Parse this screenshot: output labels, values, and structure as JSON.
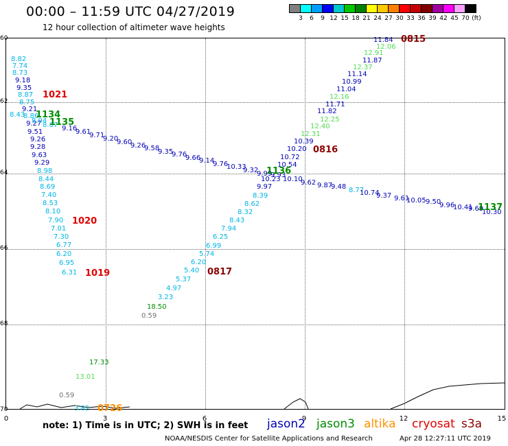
{
  "header": {
    "title": "00:00 – 11:59 UTC 04/27/2019",
    "subtitle": "12 hour collection of altimeter wave heights"
  },
  "colorbar": {
    "colors": [
      "#808080",
      "#00ffff",
      "#00a0ff",
      "#0000ff",
      "#00c8c8",
      "#00c800",
      "#008000",
      "#ffff00",
      "#ffc800",
      "#ff8000",
      "#ff0000",
      "#c80000",
      "#800000",
      "#a000a0",
      "#ff00ff",
      "#ffa0ff",
      "#000000"
    ],
    "labels": [
      "3",
      "6",
      "9",
      "12",
      "15",
      "18",
      "21",
      "24",
      "27",
      "30",
      "33",
      "36",
      "39",
      "42",
      "45",
      "70",
      "(ft)"
    ]
  },
  "axes": {
    "y_labels": [
      "60",
      "62",
      "64",
      "66",
      "68",
      "70"
    ],
    "x_labels": [
      "0",
      "3",
      "6",
      "9",
      "12",
      "15"
    ]
  },
  "series_colors": {
    "jason2": "#0000b4",
    "jason3": "#008c00",
    "altika": "#ff9000",
    "cryosat": "#e00000",
    "s3a": "#8b0000",
    "cyan": "#00b4e6",
    "lightgreen": "#50dc50",
    "gray": "#707070"
  },
  "points": [
    {
      "v": "8.82",
      "c": "cyan"
    },
    {
      "v": "7.74",
      "c": "cyan"
    },
    {
      "v": "8.73",
      "c": "cyan"
    },
    {
      "v": "9.18",
      "c": "jason2"
    },
    {
      "v": "9.35",
      "c": "jason2"
    },
    {
      "v": "8.87",
      "c": "cyan"
    },
    {
      "v": "8.75",
      "c": "cyan"
    },
    {
      "v": "9.21",
      "c": "jason2"
    },
    {
      "v": "8.43",
      "c": "cyan"
    },
    {
      "v": "8.86",
      "c": "cyan"
    },
    {
      "v": "9.27",
      "c": "jason2"
    },
    {
      "v": "8.94",
      "c": "cyan"
    },
    {
      "v": "8.67",
      "c": "cyan"
    },
    {
      "v": "9.16",
      "c": "jason2"
    },
    {
      "v": "9.51",
      "c": "jason2"
    },
    {
      "v": "9.26",
      "c": "jason2"
    },
    {
      "v": "9.28",
      "c": "jason2"
    },
    {
      "v": "9.63",
      "c": "jason2"
    },
    {
      "v": "9.29",
      "c": "jason2"
    },
    {
      "v": "8.98",
      "c": "cyan"
    },
    {
      "v": "8.44",
      "c": "cyan"
    },
    {
      "v": "8.69",
      "c": "cyan"
    },
    {
      "v": "7.40",
      "c": "cyan"
    },
    {
      "v": "8.53",
      "c": "cyan"
    },
    {
      "v": "8.10",
      "c": "cyan"
    },
    {
      "v": "7.90",
      "c": "cyan"
    },
    {
      "v": "7.01",
      "c": "cyan"
    },
    {
      "v": "7.30",
      "c": "cyan"
    },
    {
      "v": "6.77",
      "c": "cyan"
    },
    {
      "v": "6.20",
      "c": "cyan"
    },
    {
      "v": "6.95",
      "c": "cyan"
    },
    {
      "v": "6.31",
      "c": "cyan"
    },
    {
      "v": "9.61",
      "c": "jason2"
    },
    {
      "v": "9.71",
      "c": "jason2"
    },
    {
      "v": "9.20",
      "c": "jason2"
    },
    {
      "v": "9.60",
      "c": "jason2"
    },
    {
      "v": "9.26",
      "c": "jason2"
    },
    {
      "v": "9.58",
      "c": "jason2"
    },
    {
      "v": "9.35",
      "c": "jason2"
    },
    {
      "v": "9.76",
      "c": "jason2"
    },
    {
      "v": "9.66",
      "c": "jason2"
    },
    {
      "v": "9.14",
      "c": "jason2"
    },
    {
      "v": "9.76",
      "c": "jason2"
    },
    {
      "v": "10.33",
      "c": "jason2"
    },
    {
      "v": "9.32",
      "c": "jason2"
    },
    {
      "v": "9.99",
      "c": "jason2"
    },
    {
      "v": "9.93",
      "c": "jason2"
    },
    {
      "v": "10.10",
      "c": "jason2"
    },
    {
      "v": "9.62",
      "c": "jason2"
    },
    {
      "v": "9.87",
      "c": "jason2"
    },
    {
      "v": "9.48",
      "c": "jason2"
    },
    {
      "v": "8.77",
      "c": "cyan"
    },
    {
      "v": "10.74",
      "c": "jason2"
    },
    {
      "v": "9.37",
      "c": "jason2"
    },
    {
      "v": "9.61",
      "c": "jason2"
    },
    {
      "v": "10.05",
      "c": "jason2"
    },
    {
      "v": "9.50",
      "c": "jason2"
    },
    {
      "v": "9.96",
      "c": "jason2"
    },
    {
      "v": "10.41",
      "c": "jason2"
    },
    {
      "v": "9.69",
      "c": "jason2"
    },
    {
      "v": "10.30",
      "c": "jason2"
    },
    {
      "v": "11.84",
      "c": "jason2"
    },
    {
      "v": "12.06",
      "c": "lightgreen"
    },
    {
      "v": "12.91",
      "c": "lightgreen"
    },
    {
      "v": "11.87",
      "c": "jason2"
    },
    {
      "v": "12.37",
      "c": "lightgreen"
    },
    {
      "v": "11.14",
      "c": "jason2"
    },
    {
      "v": "10.99",
      "c": "jason2"
    },
    {
      "v": "11.04",
      "c": "jason2"
    },
    {
      "v": "12.16",
      "c": "lightgreen"
    },
    {
      "v": "11.71",
      "c": "jason2"
    },
    {
      "v": "11.82",
      "c": "jason2"
    },
    {
      "v": "12.25",
      "c": "lightgreen"
    },
    {
      "v": "12.40",
      "c": "lightgreen"
    },
    {
      "v": "12.31",
      "c": "lightgreen"
    },
    {
      "v": "10.39",
      "c": "jason2"
    },
    {
      "v": "10.20",
      "c": "jason2"
    },
    {
      "v": "10.72",
      "c": "jason2"
    },
    {
      "v": "10.54",
      "c": "jason2"
    },
    {
      "v": "10.23",
      "c": "jason2"
    },
    {
      "v": "9.97",
      "c": "jason2"
    },
    {
      "v": "8.39",
      "c": "cyan"
    },
    {
      "v": "8.62",
      "c": "cyan"
    },
    {
      "v": "8.32",
      "c": "cyan"
    },
    {
      "v": "8.43",
      "c": "cyan"
    },
    {
      "v": "7.94",
      "c": "cyan"
    },
    {
      "v": "6.25",
      "c": "cyan"
    },
    {
      "v": "6.99",
      "c": "cyan"
    },
    {
      "v": "5.74",
      "c": "cyan"
    },
    {
      "v": "6.20",
      "c": "cyan"
    },
    {
      "v": "5.40",
      "c": "cyan"
    },
    {
      "v": "5.37",
      "c": "cyan"
    },
    {
      "v": "4.97",
      "c": "cyan"
    },
    {
      "v": "3.23",
      "c": "cyan"
    },
    {
      "v": "18.50",
      "c": "jason3"
    },
    {
      "v": "0.59",
      "c": "gray"
    },
    {
      "v": "17.33",
      "c": "jason3"
    },
    {
      "v": "13.01",
      "c": "lightgreen"
    },
    {
      "v": "0.59",
      "c": "gray"
    },
    {
      "v": "3.82",
      "c": "cyan"
    }
  ],
  "time_labels": [
    {
      "v": "1021",
      "c": "cryosat"
    },
    {
      "v": "1134",
      "c": "jason3"
    },
    {
      "v": "1135",
      "c": "jason3"
    },
    {
      "v": "1020",
      "c": "cryosat"
    },
    {
      "v": "1019",
      "c": "cryosat"
    },
    {
      "v": "0815",
      "c": "s3a"
    },
    {
      "v": "0816",
      "c": "s3a"
    },
    {
      "v": "1136",
      "c": "jason3"
    },
    {
      "v": "0817",
      "c": "s3a"
    },
    {
      "v": "1137",
      "c": "jason3"
    },
    {
      "v": "0726",
      "c": "altika"
    }
  ],
  "note": "note:  1) Time is in UTC;  2) SWH is in feet",
  "legend": [
    {
      "label": "jason2",
      "c": "jason2"
    },
    {
      "label": "jason3",
      "c": "jason3"
    },
    {
      "label": "altika",
      "c": "altika"
    },
    {
      "label": "cryosat",
      "c": "cryosat"
    },
    {
      "label": "s3a",
      "c": "s3a"
    }
  ],
  "credit": "NOAA/NESDIS Center for Satellite Applications and Research",
  "stamp": "Apr 28 12:27:11 UTC 2019"
}
